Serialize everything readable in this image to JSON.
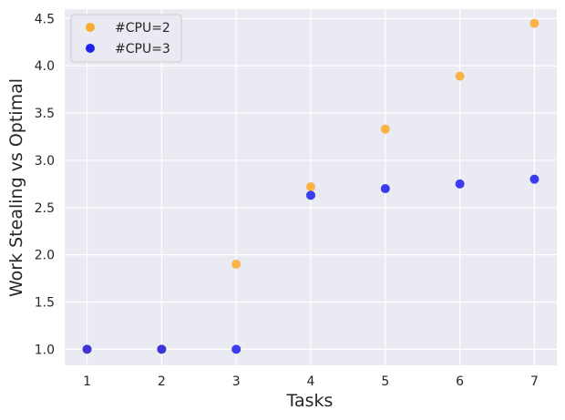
{
  "chart_data": {
    "type": "scatter",
    "title": "",
    "xlabel": "Tasks",
    "ylabel": "Work Stealing vs Optimal",
    "xlim": [
      0.7,
      7.3
    ],
    "ylim": [
      0.83,
      4.6
    ],
    "xticks": [
      1,
      2,
      3,
      4,
      5,
      6,
      7
    ],
    "yticks": [
      1.0,
      1.5,
      2.0,
      2.5,
      3.0,
      3.5,
      4.0,
      4.5
    ],
    "ytick_labels": [
      "1.0",
      "1.5",
      "2.0",
      "2.5",
      "3.0",
      "3.5",
      "4.0",
      "4.5"
    ],
    "grid": true,
    "legend_position": "top-left",
    "series": [
      {
        "name": "#CPU=2",
        "color": "#fbab2e",
        "x": [
          1,
          2,
          3,
          4,
          5,
          6,
          7
        ],
        "y": [
          1.0,
          1.0,
          1.9,
          2.72,
          3.33,
          3.89,
          4.45
        ]
      },
      {
        "name": "#CPU=3",
        "color": "#2222ee",
        "x": [
          1,
          2,
          3,
          4,
          5,
          6,
          7
        ],
        "y": [
          1.0,
          1.0,
          1.0,
          2.63,
          2.7,
          2.75,
          2.8
        ]
      }
    ]
  }
}
